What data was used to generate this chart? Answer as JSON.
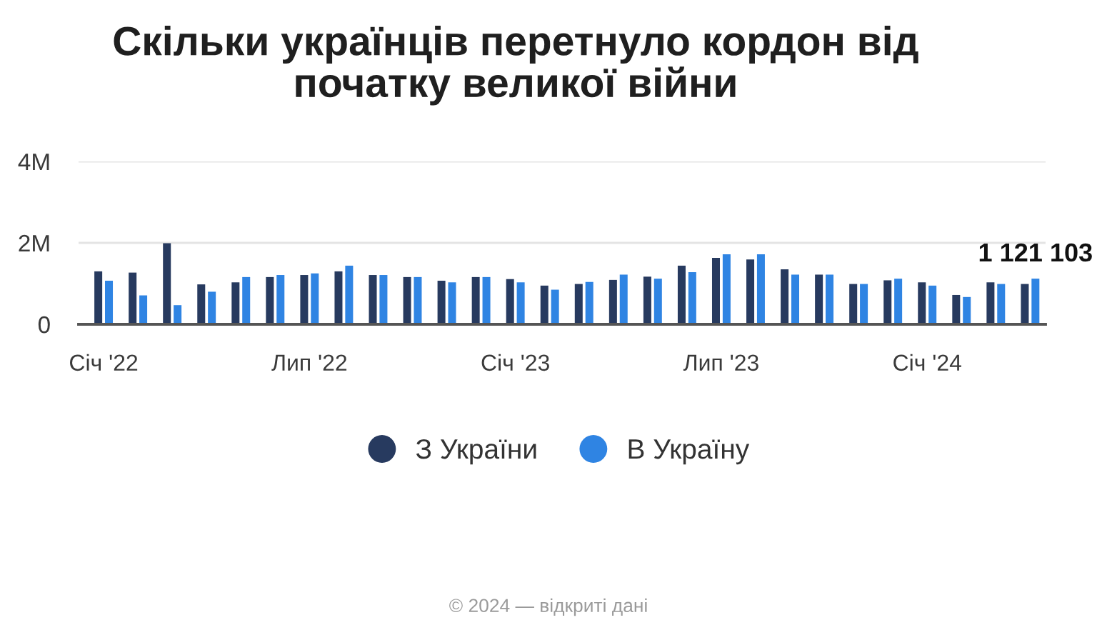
{
  "chart_data": {
    "type": "bar",
    "title": "Скільки українців перетнуло кордон від початку великої війни",
    "categories": [
      "Січ '22",
      null,
      null,
      null,
      null,
      null,
      "Лип '22",
      null,
      null,
      null,
      null,
      null,
      "Січ '23",
      null,
      null,
      null,
      null,
      null,
      "Лип '23",
      null,
      null,
      null,
      null,
      null,
      "Січ '24",
      null,
      null,
      null
    ],
    "series": [
      {
        "name": "З України",
        "color": "#273a5f",
        "values": [
          1300000,
          1270000,
          1990000,
          980000,
          1030000,
          1160000,
          1210000,
          1300000,
          1210000,
          1160000,
          1070000,
          1160000,
          1110000,
          950000,
          990000,
          1090000,
          1170000,
          1440000,
          1630000,
          1590000,
          1350000,
          1220000,
          990000,
          1080000,
          1030000,
          720000,
          1030000,
          990000
        ]
      },
      {
        "name": "В Україну",
        "color": "#2f84e3",
        "values": [
          1070000,
          710000,
          470000,
          800000,
          1160000,
          1210000,
          1250000,
          1440000,
          1210000,
          1160000,
          1030000,
          1160000,
          1030000,
          850000,
          1040000,
          1220000,
          1120000,
          1280000,
          1720000,
          1720000,
          1220000,
          1220000,
          990000,
          1120000,
          950000,
          670000,
          990000,
          1121103
        ],
        "value_labels": [
          null,
          null,
          null,
          null,
          null,
          null,
          null,
          null,
          null,
          null,
          null,
          null,
          null,
          null,
          null,
          null,
          null,
          null,
          null,
          null,
          null,
          null,
          null,
          null,
          null,
          null,
          null,
          "1 121 103"
        ]
      }
    ],
    "ylim": [
      0,
      4000000
    ],
    "yticks": [
      0,
      {
        "value": 2000000,
        "label": "2M"
      },
      {
        "value": 4000000,
        "label": "4M"
      }
    ],
    "grid": "y",
    "legend": "bottom",
    "annotations": [
      "© 2024 — відкриті дані"
    ]
  }
}
